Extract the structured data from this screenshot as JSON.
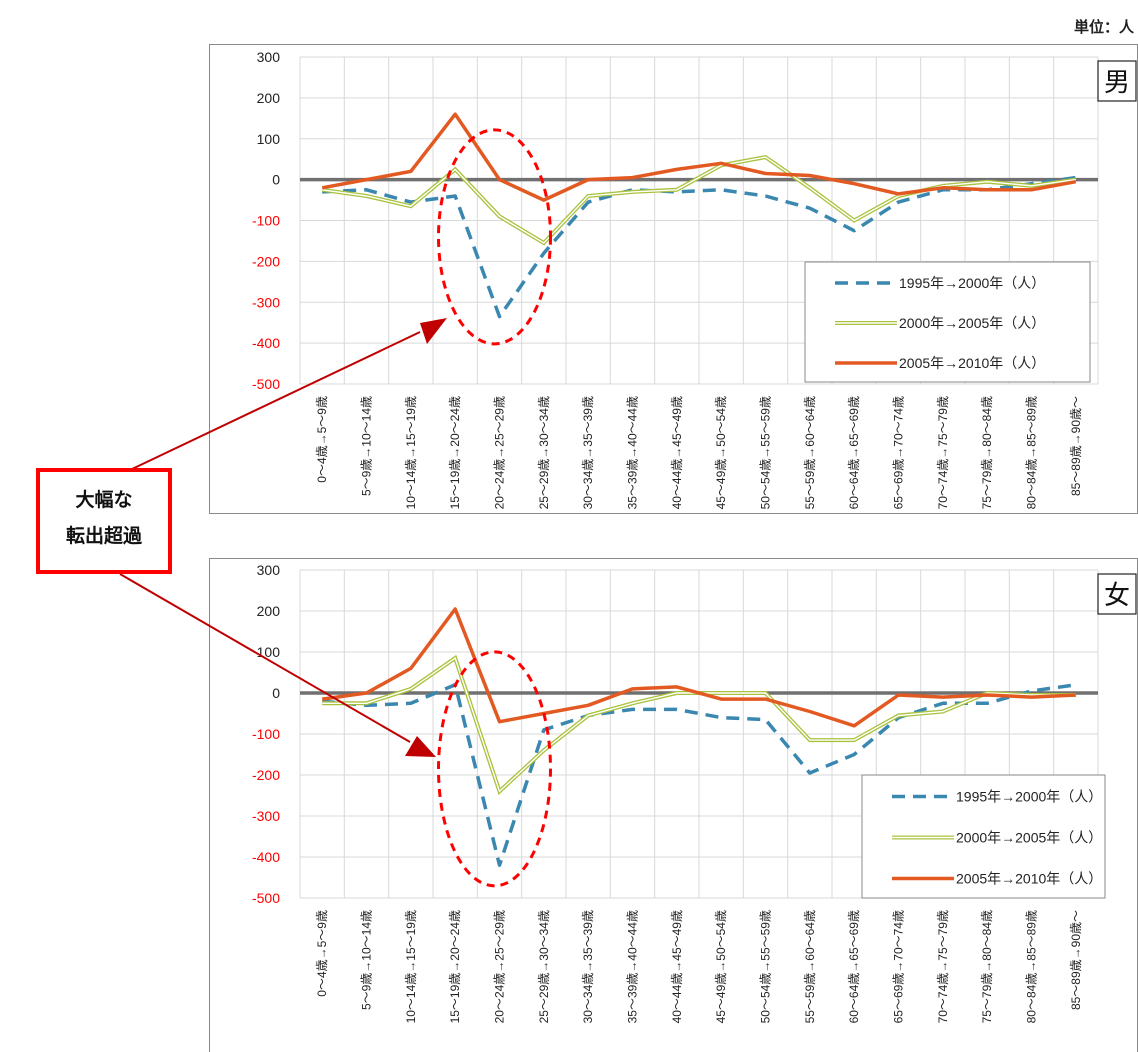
{
  "unit_label": "単位：人",
  "callout": {
    "lines": [
      "大幅な",
      "転出超過"
    ]
  },
  "colors": {
    "series": [
      "#3a87b0",
      "#a9c23e",
      "#e25a22"
    ],
    "negative_tick": "#ff0000",
    "positive_tick": "#222222",
    "zero_line": "#707070",
    "ellipse": "#ff0000",
    "callout_border": "#ff0000",
    "arrow": "#c00000"
  },
  "chart_data": [
    {
      "type": "line",
      "title": "男",
      "categories": [
        "0～4歳→5～9歳",
        "5～9歳→10～14歳",
        "10～14歳→15～19歳",
        "15～19歳→20～24歳",
        "20～24歳→25～29歳",
        "25～29歳→30～34歳",
        "30～34歳→35～39歳",
        "35～39歳→40～44歳",
        "40～44歳→45～49歳",
        "45～49歳→50～54歳",
        "50～54歳→55～59歳",
        "55～59歳→60～64歳",
        "60～64歳→65～69歳",
        "65～69歳→70～74歳",
        "70～74歳→75～79歳",
        "75～79歳→80～84歳",
        "80～84歳→85～89歳",
        "85～89歳→90歳～"
      ],
      "ylim": [
        -500,
        300
      ],
      "yticks": [
        300,
        200,
        100,
        0,
        -100,
        -200,
        -300,
        -400,
        -500
      ],
      "grid": true,
      "legend": "bottom-right",
      "series": [
        {
          "name": "1995年→2000年（人）",
          "values": [
            -30,
            -25,
            -55,
            -40,
            -335,
            -180,
            -55,
            -25,
            -30,
            -25,
            -40,
            -70,
            -125,
            -55,
            -25,
            -25,
            -10,
            5
          ]
        },
        {
          "name": "2000年→2005年（人）",
          "values": [
            -25,
            -40,
            -65,
            25,
            -90,
            -155,
            -40,
            -30,
            -25,
            35,
            55,
            -20,
            -100,
            -40,
            -15,
            -5,
            -15,
            0
          ]
        },
        {
          "name": "2005年→2010年（人）",
          "values": [
            -20,
            0,
            20,
            160,
            0,
            -50,
            0,
            5,
            25,
            40,
            15,
            10,
            -10,
            -35,
            -20,
            -25,
            -25,
            -5
          ]
        }
      ]
    },
    {
      "type": "line",
      "title": "女",
      "categories": [
        "0～4歳→5～9歳",
        "5～9歳→10～14歳",
        "10～14歳→15～19歳",
        "15～19歳→20～24歳",
        "20～24歳→25～29歳",
        "25～29歳→30～34歳",
        "30～34歳→35～39歳",
        "35～39歳→40～44歳",
        "40～44歳→45～49歳",
        "45～49歳→50～54歳",
        "50～54歳→55～59歳",
        "55～59歳→60～64歳",
        "60～64歳→65～69歳",
        "65～69歳→70～74歳",
        "70～74歳→75～79歳",
        "75～79歳→80～84歳",
        "80～84歳→85～89歳",
        "85～89歳→90歳～"
      ],
      "ylim": [
        -500,
        300
      ],
      "yticks": [
        300,
        200,
        100,
        0,
        -100,
        -200,
        -300,
        -400,
        -500
      ],
      "grid": true,
      "legend": "bottom-right",
      "series": [
        {
          "name": "1995年→2000年（人）",
          "values": [
            -20,
            -30,
            -25,
            20,
            -420,
            -90,
            -55,
            -40,
            -40,
            -60,
            -65,
            -195,
            -150,
            -60,
            -25,
            -25,
            5,
            20
          ]
        },
        {
          "name": "2000年→2005年（人）",
          "values": [
            -25,
            -25,
            10,
            85,
            -240,
            -140,
            -55,
            -25,
            0,
            0,
            0,
            -115,
            -115,
            -55,
            -45,
            0,
            -5,
            -5
          ]
        },
        {
          "name": "2005年→2010年（人）",
          "values": [
            -15,
            0,
            60,
            205,
            -70,
            -50,
            -30,
            10,
            15,
            -15,
            -15,
            -45,
            -80,
            -5,
            -10,
            -5,
            -10,
            -5
          ]
        }
      ]
    }
  ]
}
